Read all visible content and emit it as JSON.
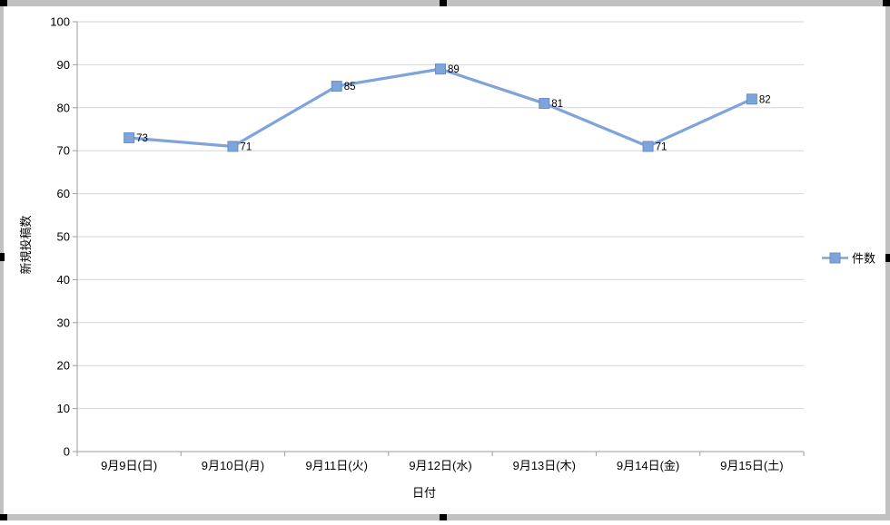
{
  "chart_data": {
    "type": "line",
    "title": "",
    "categories": [
      "9月9日(日)",
      "9月10日(月)",
      "9月11日(火)",
      "9月12日(水)",
      "9月13日(木)",
      "9月14日(金)",
      "9月15日(土)"
    ],
    "series": [
      {
        "name": "件数",
        "values": [
          73,
          71,
          85,
          89,
          81,
          71,
          82
        ]
      }
    ],
    "xlabel": "日付",
    "ylabel": "新規投稿数",
    "ylim": [
      0,
      100
    ],
    "ytick_interval": 10,
    "grid": true,
    "legend_position": "right",
    "marker": "square",
    "data_labels": true,
    "colors": {
      "series": "#7ea4d9",
      "marker_border": "#6690c9",
      "gridline": "#d6d6d6",
      "axis": "#9e9e9e",
      "text": "#000000",
      "frame": "#c1c1c1",
      "handle": "#000000",
      "background": "#ffffff"
    }
  }
}
